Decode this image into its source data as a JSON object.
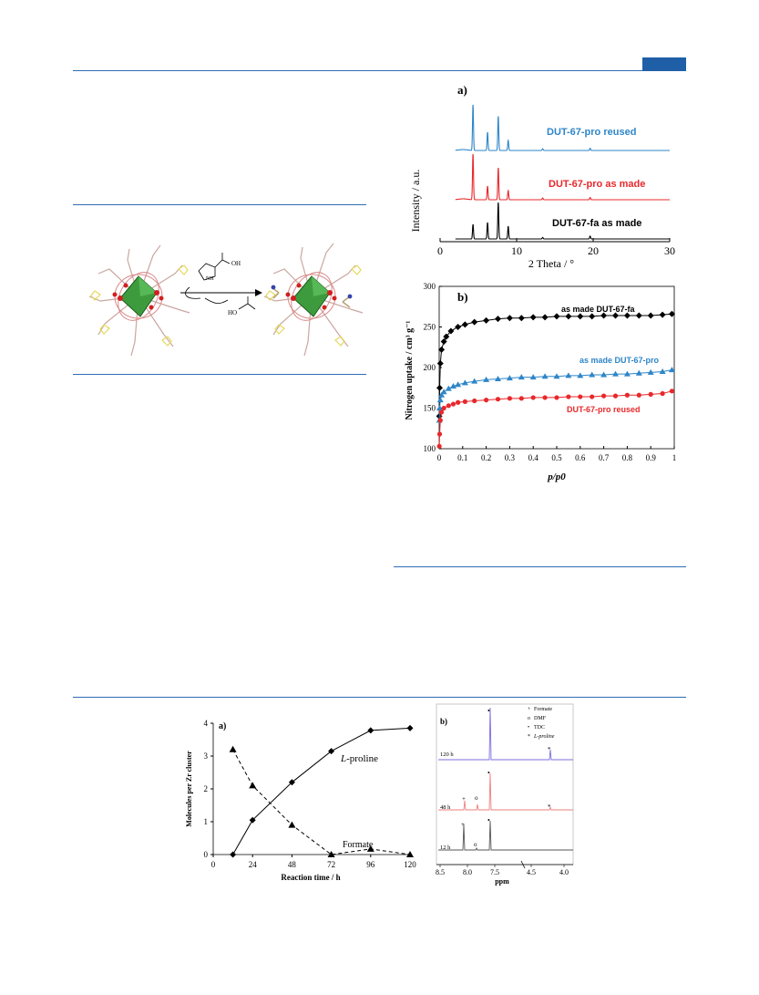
{
  "colors": {
    "rule": "#2f6db5",
    "blue": "#2e86c8",
    "red": "#e8282b",
    "black": "#000000",
    "purple": "#7b6fe0",
    "pink": "#ee7f7f",
    "gray": "#555555"
  },
  "scheme": {
    "reagent_label": "OH",
    "amine_label": "NH",
    "byproduct_label": "HO"
  },
  "chart_data": [
    {
      "id": "pxrd",
      "type": "line",
      "panel_label": "a)",
      "xlabel": "2 Theta / °",
      "ylabel": "Intensity / a.u.",
      "xlim": [
        0,
        30
      ],
      "xticks": [
        "0",
        "10",
        "20",
        "30"
      ],
      "series": [
        {
          "name": "DUT-67-pro reused",
          "color": "#2e86c8",
          "peaks": [
            [
              4.3,
              1.0
            ],
            [
              6.2,
              0.4
            ],
            [
              7.6,
              0.75
            ],
            [
              8.9,
              0.22
            ],
            [
              13.4,
              0.04
            ],
            [
              19.6,
              0.05
            ]
          ]
        },
        {
          "name": "DUT-67-pro as made",
          "color": "#e8282b",
          "peaks": [
            [
              4.3,
              1.0
            ],
            [
              6.2,
              0.3
            ],
            [
              7.6,
              0.7
            ],
            [
              8.9,
              0.2
            ],
            [
              13.4,
              0.04
            ],
            [
              19.6,
              0.05
            ]
          ]
        },
        {
          "name": "DUT-67-fa as made",
          "color": "#000000",
          "peaks": [
            [
              4.3,
              0.4
            ],
            [
              6.2,
              0.45
            ],
            [
              7.6,
              1.0
            ],
            [
              8.9,
              0.35
            ],
            [
              13.4,
              0.04
            ],
            [
              19.6,
              0.08
            ]
          ]
        }
      ]
    },
    {
      "id": "n2_isotherm",
      "type": "scatter",
      "panel_label": "b)",
      "xlabel": "p/p0",
      "ylabel": "Nitrogen uptake / cm³ g⁻¹",
      "xlim": [
        0,
        1
      ],
      "ylim": [
        100,
        300
      ],
      "xticks": [
        "0",
        "0.1",
        "0.2",
        "0.3",
        "0.4",
        "0.5",
        "0.6",
        "0.7",
        "0.8",
        "0.9",
        "1"
      ],
      "yticks": [
        "100",
        "150",
        "200",
        "250",
        "300"
      ],
      "series": [
        {
          "name": "as made DUT-67-fa",
          "color": "#000000",
          "marker": "diamond",
          "points": [
            [
              0.0005,
              140
            ],
            [
              0.002,
              175
            ],
            [
              0.005,
              205
            ],
            [
              0.01,
              222
            ],
            [
              0.02,
              232
            ],
            [
              0.03,
              238
            ],
            [
              0.05,
              245
            ],
            [
              0.08,
              250
            ],
            [
              0.11,
              253
            ],
            [
              0.15,
              256
            ],
            [
              0.2,
              258
            ],
            [
              0.25,
              260
            ],
            [
              0.3,
              261
            ],
            [
              0.35,
              261
            ],
            [
              0.4,
              262
            ],
            [
              0.45,
              262
            ],
            [
              0.5,
              263
            ],
            [
              0.55,
              263
            ],
            [
              0.6,
              263
            ],
            [
              0.65,
              263
            ],
            [
              0.7,
              264
            ],
            [
              0.75,
              264
            ],
            [
              0.8,
              264
            ],
            [
              0.85,
              264
            ],
            [
              0.9,
              264
            ],
            [
              0.95,
              265
            ],
            [
              0.99,
              266
            ]
          ]
        },
        {
          "name": "as made DUT-67-pro",
          "color": "#2e86c8",
          "marker": "triangle",
          "points": [
            [
              0.0005,
              135
            ],
            [
              0.002,
              150
            ],
            [
              0.005,
              160
            ],
            [
              0.01,
              166
            ],
            [
              0.02,
              170
            ],
            [
              0.04,
              174
            ],
            [
              0.06,
              177
            ],
            [
              0.08,
              179
            ],
            [
              0.11,
              181
            ],
            [
              0.15,
              183
            ],
            [
              0.2,
              185
            ],
            [
              0.25,
              186
            ],
            [
              0.3,
              187
            ],
            [
              0.35,
              188
            ],
            [
              0.4,
              188
            ],
            [
              0.45,
              189
            ],
            [
              0.5,
              189
            ],
            [
              0.55,
              190
            ],
            [
              0.6,
              190
            ],
            [
              0.65,
              191
            ],
            [
              0.7,
              191
            ],
            [
              0.75,
              192
            ],
            [
              0.8,
              192
            ],
            [
              0.85,
              193
            ],
            [
              0.9,
              194
            ],
            [
              0.95,
              195
            ],
            [
              0.99,
              197
            ]
          ]
        },
        {
          "name": "DUT-67-pro reused",
          "color": "#e8282b",
          "marker": "circle",
          "points": [
            [
              0.0005,
              103
            ],
            [
              0.002,
              118
            ],
            [
              0.005,
              135
            ],
            [
              0.01,
              145
            ],
            [
              0.02,
              150
            ],
            [
              0.04,
              153
            ],
            [
              0.06,
              155
            ],
            [
              0.08,
              157
            ],
            [
              0.11,
              158
            ],
            [
              0.15,
              159
            ],
            [
              0.2,
              160
            ],
            [
              0.25,
              161
            ],
            [
              0.3,
              162
            ],
            [
              0.35,
              162
            ],
            [
              0.4,
              163
            ],
            [
              0.45,
              163
            ],
            [
              0.5,
              163
            ],
            [
              0.55,
              164
            ],
            [
              0.6,
              164
            ],
            [
              0.65,
              164
            ],
            [
              0.7,
              165
            ],
            [
              0.75,
              165
            ],
            [
              0.8,
              166
            ],
            [
              0.85,
              166
            ],
            [
              0.9,
              167
            ],
            [
              0.95,
              168
            ],
            [
              0.99,
              171
            ]
          ]
        }
      ]
    },
    {
      "id": "exchange_kinetics",
      "type": "line",
      "panel_label": "a)",
      "xlabel": "Reaction time / h",
      "ylabel": "Molecules per Zr cluster",
      "xlim": [
        0,
        120
      ],
      "ylim": [
        0,
        4
      ],
      "xticks": [
        "0",
        "24",
        "48",
        "72",
        "96",
        "120"
      ],
      "yticks": [
        "0",
        "1",
        "2",
        "3",
        "4"
      ],
      "series": [
        {
          "name": "L-proline",
          "label_prefix": "L",
          "label_rest": "-proline",
          "marker": "diamond",
          "dash": "solid",
          "points": [
            [
              12,
              0.0
            ],
            [
              24,
              1.05
            ],
            [
              48,
              2.2
            ],
            [
              72,
              3.15
            ],
            [
              96,
              3.78
            ],
            [
              120,
              3.85
            ]
          ]
        },
        {
          "name": "Formate",
          "marker": "triangle",
          "dash": "dashed",
          "points": [
            [
              12,
              3.2
            ],
            [
              24,
              2.1
            ],
            [
              48,
              0.9
            ],
            [
              72,
              0.0
            ],
            [
              96,
              0.17
            ],
            [
              120,
              0.0
            ]
          ]
        }
      ]
    },
    {
      "id": "nmr",
      "type": "line",
      "panel_label": "b)",
      "xlabel": "ppm",
      "xticks": [
        "8.5",
        "8.0",
        "7.5",
        "4.5",
        "4.0"
      ],
      "legend": [
        {
          "symbol": "+",
          "label": "Formate"
        },
        {
          "symbol": "o",
          "label": "DMF"
        },
        {
          "symbol": "•",
          "label": "TDC"
        },
        {
          "symbol": "*",
          "label": "L-proline"
        }
      ],
      "spectra": [
        {
          "name": "120 h",
          "color": "#7b6fe0"
        },
        {
          "name": "48 h",
          "color": "#ee7f7f"
        },
        {
          "name": "12 h",
          "color": "#555555"
        }
      ]
    }
  ]
}
